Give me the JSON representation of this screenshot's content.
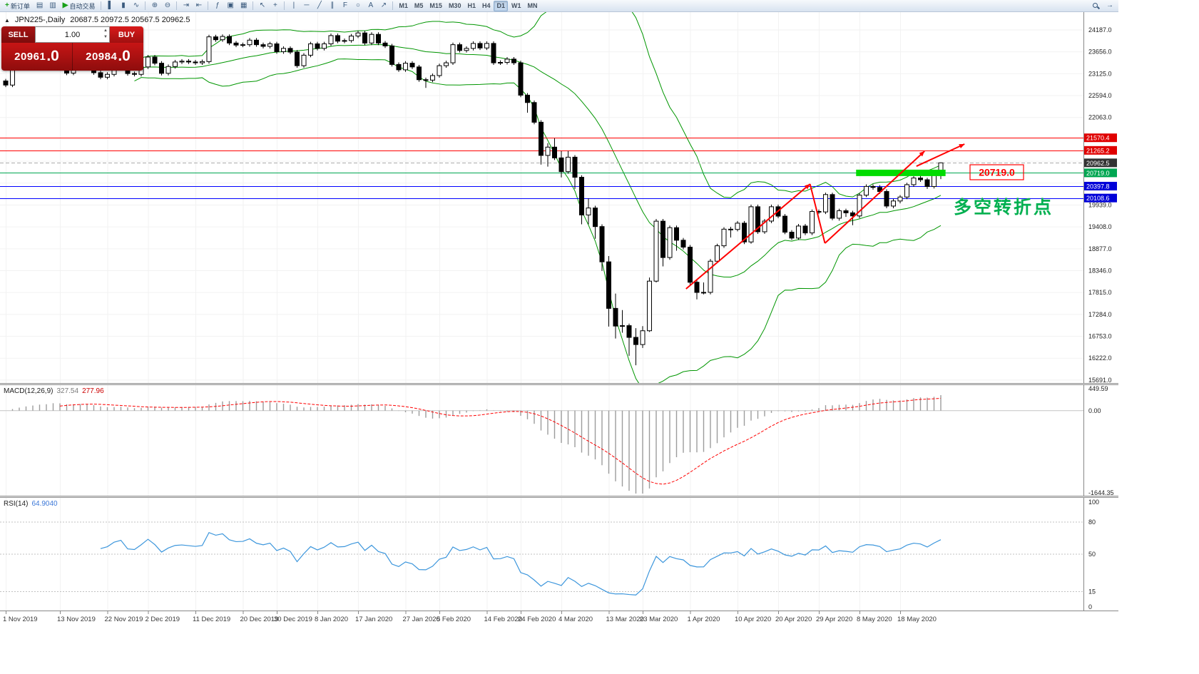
{
  "window": {
    "chart_header": {
      "collapse_glyph": "▲",
      "symbol": "JPN225-,Daily",
      "ohlc": "20687.5 20972.5 20567.5 20962.5"
    }
  },
  "toolbar": {
    "groups": [
      [
        {
          "name": "new-order",
          "glyph": "+",
          "glyph_color": "#18a018",
          "label": "新订单"
        },
        {
          "name": "chart-window",
          "glyph": "▤"
        },
        {
          "name": "profiles",
          "glyph": "▥"
        },
        {
          "name": "auto-trading",
          "glyph": "▶",
          "glyph_color": "#18a018",
          "label": "自动交易"
        }
      ],
      [
        {
          "name": "bar-chart-mode",
          "glyph": "▌"
        },
        {
          "name": "candlestick-mode",
          "glyph": "▮"
        },
        {
          "name": "line-chart-mode",
          "glyph": "∿"
        }
      ],
      [
        {
          "name": "zoom-in",
          "glyph": "⊕"
        },
        {
          "name": "zoom-out",
          "glyph": "⊖"
        }
      ],
      [
        {
          "name": "auto-scroll",
          "glyph": "⇥"
        },
        {
          "name": "chart-shift",
          "glyph": "⇤"
        }
      ],
      [
        {
          "name": "indicators",
          "glyph": "ƒ"
        },
        {
          "name": "periods",
          "glyph": "▣"
        },
        {
          "name": "templates",
          "glyph": "▦"
        }
      ],
      [
        {
          "name": "cursor",
          "glyph": "↖"
        },
        {
          "name": "crosshair",
          "glyph": "+"
        }
      ],
      [
        {
          "name": "vertical-line",
          "glyph": "|"
        },
        {
          "name": "horizontal-line",
          "glyph": "─"
        },
        {
          "name": "trendline",
          "glyph": "╱"
        },
        {
          "name": "equidistant-channel",
          "glyph": "∥"
        },
        {
          "name": "fibonacci",
          "glyph": "F"
        },
        {
          "name": "shapes",
          "glyph": "○"
        },
        {
          "name": "text-tool",
          "glyph": "A"
        },
        {
          "name": "arrow-tool",
          "glyph": "↗"
        }
      ]
    ],
    "timeframes": [
      "M1",
      "M5",
      "M15",
      "M30",
      "H1",
      "H4",
      "D1",
      "W1",
      "MN"
    ],
    "active_timeframe": "D1",
    "right": [
      {
        "name": "search",
        "css_icon": "search"
      },
      {
        "name": "scroll-to-end",
        "glyph": "→"
      }
    ]
  },
  "trade_panel": {
    "sell_label": "SELL",
    "buy_label": "BUY",
    "volume": "1.00",
    "spin_up": "▲",
    "spin_down": "▼",
    "sell_price_main": "20961",
    "sell_price_pips": ".0",
    "buy_price_main": "20984",
    "buy_price_pips": ".0"
  },
  "chart_data": {
    "type": "candlestick+indicators",
    "symbol": "JPN225-",
    "timeframe": "Daily",
    "last_ohlc": {
      "open": 20687.5,
      "high": 20972.5,
      "low": 20567.5,
      "close": 20962.5
    },
    "candles_ohlc": [
      [
        22950,
        23000,
        22800,
        22850
      ],
      [
        22850,
        23300,
        22800,
        23250
      ],
      [
        23250,
        23350,
        23200,
        23300
      ],
      [
        23300,
        23370,
        23250,
        23320
      ],
      [
        23320,
        23380,
        23270,
        23330
      ],
      [
        23330,
        23440,
        23280,
        23390
      ],
      [
        23390,
        23440,
        23280,
        23330
      ],
      [
        23330,
        23570,
        23280,
        23520
      ],
      [
        23520,
        23570,
        23270,
        23320
      ],
      [
        23320,
        23370,
        23090,
        23140
      ],
      [
        23140,
        23350,
        23090,
        23300
      ],
      [
        23300,
        23470,
        23250,
        23420
      ],
      [
        23420,
        23470,
        23290,
        23340
      ],
      [
        23340,
        23390,
        23100,
        23150
      ],
      [
        23150,
        23200,
        22990,
        23040
      ],
      [
        23040,
        23160,
        22990,
        23110
      ],
      [
        23110,
        23340,
        23060,
        23290
      ],
      [
        23290,
        23420,
        23240,
        23370
      ],
      [
        23370,
        23420,
        23080,
        23130
      ],
      [
        23130,
        23180,
        23060,
        23110
      ],
      [
        23110,
        23340,
        23060,
        23290
      ],
      [
        23290,
        23580,
        23240,
        23530
      ],
      [
        23530,
        23580,
        23330,
        23380
      ],
      [
        23380,
        23430,
        23085,
        23135
      ],
      [
        23135,
        23350,
        23085,
        23300
      ],
      [
        23300,
        23460,
        23250,
        23410
      ],
      [
        23410,
        23480,
        23360,
        23430
      ],
      [
        23430,
        23480,
        23360,
        23410
      ],
      [
        23410,
        23460,
        23340,
        23390
      ],
      [
        23390,
        23470,
        23340,
        23420
      ],
      [
        23420,
        24070,
        23370,
        24020
      ],
      [
        24020,
        24070,
        23900,
        23950
      ],
      [
        23950,
        24080,
        23900,
        24030
      ],
      [
        24030,
        24080,
        23820,
        23870
      ],
      [
        23870,
        23920,
        23770,
        23820
      ],
      [
        23820,
        23880,
        23770,
        23830
      ],
      [
        23830,
        23990,
        23780,
        23940
      ],
      [
        23940,
        23990,
        23780,
        23830
      ],
      [
        23830,
        23880,
        23740,
        23790
      ],
      [
        23790,
        23900,
        23740,
        23850
      ],
      [
        23850,
        23900,
        23610,
        23660
      ],
      [
        23660,
        23790,
        23610,
        23740
      ],
      [
        23740,
        23790,
        23600,
        23650
      ],
      [
        23650,
        23700,
        23270,
        23320
      ],
      [
        23320,
        23625,
        23270,
        23575
      ],
      [
        23575,
        23900,
        23525,
        23850
      ],
      [
        23850,
        23900,
        23690,
        23740
      ],
      [
        23740,
        23900,
        23690,
        23850
      ],
      [
        23850,
        24100,
        23800,
        24050
      ],
      [
        24050,
        24100,
        23865,
        23915
      ],
      [
        23915,
        23980,
        23865,
        23930
      ],
      [
        23930,
        24090,
        23880,
        24040
      ],
      [
        24040,
        24165,
        23990,
        24115
      ],
      [
        24115,
        24165,
        23820,
        23870
      ],
      [
        23870,
        24130,
        23820,
        24080
      ],
      [
        24080,
        24130,
        23820,
        23870
      ],
      [
        23870,
        23920,
        23750,
        23800
      ],
      [
        23800,
        23850,
        23300,
        23350
      ],
      [
        23350,
        23400,
        23170,
        23220
      ],
      [
        23220,
        23430,
        23170,
        23380
      ],
      [
        23380,
        23430,
        23240,
        23290
      ],
      [
        23290,
        23340,
        22930,
        22980
      ],
      [
        22980,
        23030,
        22780,
        22970
      ],
      [
        22970,
        23130,
        22920,
        23080
      ],
      [
        23080,
        23370,
        23030,
        23320
      ],
      [
        23320,
        23440,
        23270,
        23390
      ],
      [
        23390,
        23880,
        23340,
        23830
      ],
      [
        23830,
        23880,
        23640,
        23690
      ],
      [
        23690,
        23790,
        23640,
        23740
      ],
      [
        23740,
        23910,
        23690,
        23860
      ],
      [
        23860,
        23910,
        23700,
        23750
      ],
      [
        23750,
        23910,
        23700,
        23860
      ],
      [
        23860,
        23910,
        23340,
        23390
      ],
      [
        23390,
        23450,
        23340,
        23400
      ],
      [
        23400,
        23530,
        23350,
        23480
      ],
      [
        23480,
        23530,
        23340,
        23390
      ],
      [
        23390,
        23440,
        22555,
        22605
      ],
      [
        22605,
        22655,
        22180,
        22426
      ],
      [
        22426,
        22476,
        21898,
        21948
      ],
      [
        21948,
        21998,
        20920,
        21143
      ],
      [
        21143,
        21440,
        20870,
        21344
      ],
      [
        21344,
        21560,
        21030,
        21083
      ],
      [
        21083,
        21250,
        20610,
        20749
      ],
      [
        20749,
        21250,
        20700,
        21100
      ],
      [
        21100,
        21150,
        20330,
        20613
      ],
      [
        20613,
        20660,
        19470,
        19698
      ],
      [
        19698,
        20100,
        19470,
        19867
      ],
      [
        19867,
        19920,
        19120,
        19416
      ],
      [
        19416,
        19470,
        18340,
        18560
      ],
      [
        18560,
        18700,
        16990,
        17431
      ],
      [
        17431,
        17790,
        16700,
        17002
      ],
      [
        17002,
        17390,
        16840,
        17012
      ],
      [
        17012,
        17060,
        16280,
        16727
      ],
      [
        16727,
        16950,
        16050,
        16553
      ],
      [
        16553,
        17000,
        16470,
        16888
      ],
      [
        16888,
        18180,
        16860,
        18092
      ],
      [
        18092,
        19600,
        18060,
        19547
      ],
      [
        19547,
        19600,
        18450,
        18665
      ],
      [
        18665,
        19440,
        18610,
        19389
      ],
      [
        19389,
        19440,
        18830,
        19085
      ],
      [
        19085,
        19140,
        18860,
        18917
      ],
      [
        18917,
        18970,
        18010,
        18065
      ],
      [
        18065,
        18120,
        17650,
        17818
      ],
      [
        17818,
        18060,
        17770,
        17820
      ],
      [
        17820,
        18630,
        17770,
        18576
      ],
      [
        18576,
        19000,
        18530,
        18950
      ],
      [
        18950,
        19400,
        18900,
        19353
      ],
      [
        19353,
        19410,
        19150,
        19346
      ],
      [
        19346,
        19550,
        19300,
        19499
      ],
      [
        19499,
        19550,
        18990,
        19043
      ],
      [
        19043,
        19950,
        19000,
        19897
      ],
      [
        19897,
        19950,
        19240,
        19290
      ],
      [
        19290,
        19600,
        19240,
        19550
      ],
      [
        19550,
        19950,
        19500,
        19897
      ],
      [
        19897,
        19950,
        19620,
        19669
      ],
      [
        19669,
        19720,
        19230,
        19280
      ],
      [
        19280,
        19330,
        19090,
        19137
      ],
      [
        19137,
        19480,
        19090,
        19429
      ],
      [
        19429,
        19480,
        19210,
        19262
      ],
      [
        19262,
        19830,
        19210,
        19783
      ],
      [
        19783,
        19830,
        19720,
        19771
      ],
      [
        19771,
        20240,
        19720,
        20193
      ],
      [
        20193,
        20240,
        19570,
        19619
      ],
      [
        19619,
        19850,
        19560,
        19800
      ],
      [
        19800,
        19850,
        19650,
        19750
      ],
      [
        19750,
        19800,
        19450,
        19674
      ],
      [
        19674,
        20230,
        19620,
        20179
      ],
      [
        20179,
        20440,
        20130,
        20390
      ],
      [
        20390,
        20440,
        20310,
        20366
      ],
      [
        20366,
        20420,
        20210,
        20267
      ],
      [
        20267,
        20320,
        19860,
        19914
      ],
      [
        19914,
        20090,
        19860,
        20037
      ],
      [
        20037,
        20180,
        19980,
        20133
      ],
      [
        20133,
        20480,
        20080,
        20433
      ],
      [
        20433,
        20640,
        20380,
        20595
      ],
      [
        20595,
        20650,
        20500,
        20552
      ],
      [
        20552,
        20600,
        20330,
        20388
      ],
      [
        20388,
        20760,
        20340,
        20687
      ],
      [
        20687.5,
        20972.5,
        20567.5,
        20962.5
      ]
    ],
    "x_ticks": [
      {
        "label": "1 Nov 2019",
        "i": 0
      },
      {
        "label": "13 Nov 2019",
        "i": 8
      },
      {
        "label": "22 Nov 2019",
        "i": 15
      },
      {
        "label": "2 Dec 2019",
        "i": 21
      },
      {
        "label": "11 Dec 2019",
        "i": 28
      },
      {
        "label": "20 Dec 2019",
        "i": 35
      },
      {
        "label": "30 Dec 2019",
        "i": 40
      },
      {
        "label": "8 Jan 2020",
        "i": 46
      },
      {
        "label": "17 Jan 2020",
        "i": 52
      },
      {
        "label": "27 Jan 2020",
        "i": 59
      },
      {
        "label": "5 Feb 2020",
        "i": 64
      },
      {
        "label": "14 Feb 2020",
        "i": 71
      },
      {
        "label": "24 Feb 2020",
        "i": 76
      },
      {
        "label": "4 Mar 2020",
        "i": 82
      },
      {
        "label": "13 Mar 2020",
        "i": 89
      },
      {
        "label": "23 Mar 2020",
        "i": 94
      },
      {
        "label": "1 Apr 2020",
        "i": 101
      },
      {
        "label": "10 Apr 2020",
        "i": 108
      },
      {
        "label": "20 Apr 2020",
        "i": 114
      },
      {
        "label": "29 Apr 2020",
        "i": 120
      },
      {
        "label": "8 May 2020",
        "i": 126
      },
      {
        "label": "18 May 2020",
        "i": 132
      }
    ],
    "price_axis": {
      "min": 15620,
      "max": 24620,
      "labels": [
        24187.0,
        23656.0,
        23125.0,
        22594.0,
        22063.0,
        19939.0,
        19408.0,
        18877.0,
        18346.0,
        17815.0,
        17284.0,
        16753.0,
        16222.0,
        15691.0
      ],
      "grid_extra": [
        21532.0,
        21001.0,
        20470.0
      ]
    },
    "hlines": [
      {
        "price": 21570.4,
        "color": "#ff0000",
        "tag_bg": "#e00000"
      },
      {
        "price": 21265.2,
        "color": "#ff0000",
        "tag_bg": "#e00000"
      },
      {
        "price": 20962.5,
        "color": "#aaaaaa",
        "style": "dash",
        "tag_bg": "#333333"
      },
      {
        "price": 20719.0,
        "color": "#00a651",
        "tag_bg": "#00a651"
      },
      {
        "price": 20397.8,
        "color": "#0000ff",
        "tag_bg": "#0000d8"
      },
      {
        "price": 20108.6,
        "color": "#0000ff",
        "tag_bg": "#0000d8"
      }
    ],
    "bollinger": {
      "period": 20,
      "deviation": 2,
      "color": "#009600"
    },
    "macd": {
      "label": "MACD(12,26,9)",
      "value": "327.54",
      "signal_value": "277.96",
      "ylim": [
        -1644.35,
        449.59
      ],
      "axis_labels": [
        "449.59",
        "0.00",
        "-1644.35"
      ],
      "histogram_color": "#9c9c9c",
      "signal_color": "#ff0000"
    },
    "rsi": {
      "label": "RSI(14)",
      "value": "64.9040",
      "ylim": [
        0,
        100
      ],
      "levels": [
        80,
        50,
        15
      ],
      "axis_labels": [
        "100",
        "80",
        "50",
        "15",
        "0"
      ],
      "color": "#3c96dc"
    },
    "annotations": {
      "green_zone": {
        "i1": 125.5,
        "i2": 138.7,
        "price": 20719.0,
        "h": 9,
        "color": "#00dc00"
      },
      "trend_polyline": [
        [
          100.4,
          17905
        ],
        [
          118.7,
          20449
        ],
        [
          120.9,
          19012
        ],
        [
          135.6,
          21245
        ]
      ],
      "arrow": [
        [
          134.4,
          20881
        ],
        [
          141.5,
          21418
        ]
      ],
      "trend_color": "#ff0000",
      "price_label": {
        "text": "20719.0",
        "x": 1360,
        "y": 231,
        "w": 75,
        "h": 21,
        "color": "#ff0000"
      },
      "cn_note": {
        "text": "多空转折点",
        "x": 1337,
        "y": 299,
        "size": 25,
        "color": "#00b050"
      }
    }
  }
}
